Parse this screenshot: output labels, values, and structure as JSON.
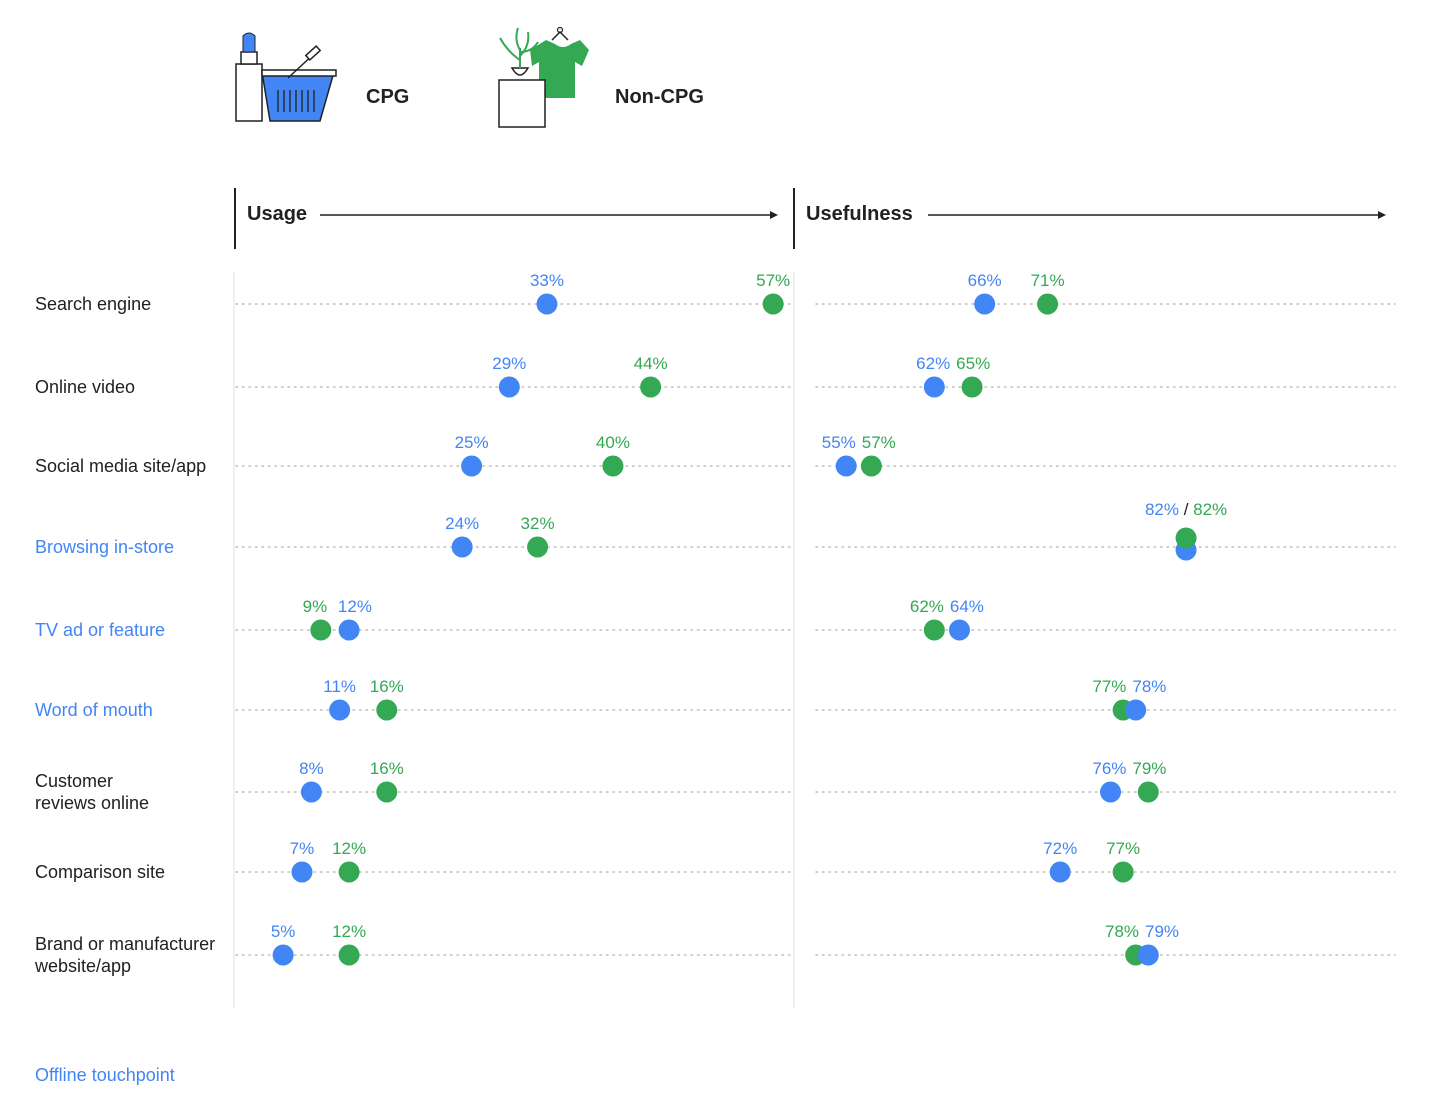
{
  "legend": {
    "cpg_label": "CPG",
    "noncpg_label": "Non-CPG",
    "cpg_icon": "lipstick-basket-icon",
    "noncpg_icon": "plant-shirt-icon"
  },
  "colors": {
    "cpg": "#4285F4",
    "noncpg": "#34A853",
    "offline": "#4285F4",
    "dots": "#bdbdbd"
  },
  "footer": "Offline touchpoint",
  "chart_data": [
    {
      "type": "scatter",
      "title": "Usage",
      "xlim": [
        0,
        60
      ],
      "series": [
        {
          "name": "CPG"
        },
        {
          "name": "Non-CPG"
        }
      ],
      "categories": [
        "Search engine",
        "Online video",
        "Social media site/app",
        "Browsing in-store",
        "TV ad or feature",
        "Word of mouth",
        "Customer reviews online",
        "Comparison site",
        "Brand or manufacturer website/app"
      ],
      "cpg": [
        33,
        29,
        25,
        24,
        12,
        11,
        8,
        7,
        5
      ],
      "noncpg": [
        57,
        44,
        40,
        32,
        9,
        16,
        16,
        12,
        12
      ]
    },
    {
      "type": "scatter",
      "title": "Usefulness",
      "xlim": [
        52,
        100
      ],
      "series": [
        {
          "name": "CPG"
        },
        {
          "name": "Non-CPG"
        }
      ],
      "categories": [
        "Search engine",
        "Online video",
        "Social media site/app",
        "Browsing in-store",
        "TV ad or feature",
        "Word of mouth",
        "Customer reviews online",
        "Comparison site",
        "Brand or manufacturer website/app"
      ],
      "cpg": [
        66,
        62,
        55,
        82,
        64,
        78,
        76,
        72,
        79
      ],
      "noncpg": [
        71,
        65,
        57,
        82,
        62,
        77,
        79,
        77,
        78
      ]
    }
  ],
  "rows": [
    {
      "label": "Search engine",
      "offline": false
    },
    {
      "label": "Online video",
      "offline": false
    },
    {
      "label": "Social media site/app",
      "offline": false
    },
    {
      "label": "Browsing in-store",
      "offline": true
    },
    {
      "label": "TV ad or feature",
      "offline": true
    },
    {
      "label": "Word of mouth",
      "offline": true
    },
    {
      "label": "Customer\nreviews online",
      "offline": false
    },
    {
      "label": "Comparison site",
      "offline": false
    },
    {
      "label": "Brand or manufacturer\nwebsite/app",
      "offline": false
    }
  ]
}
